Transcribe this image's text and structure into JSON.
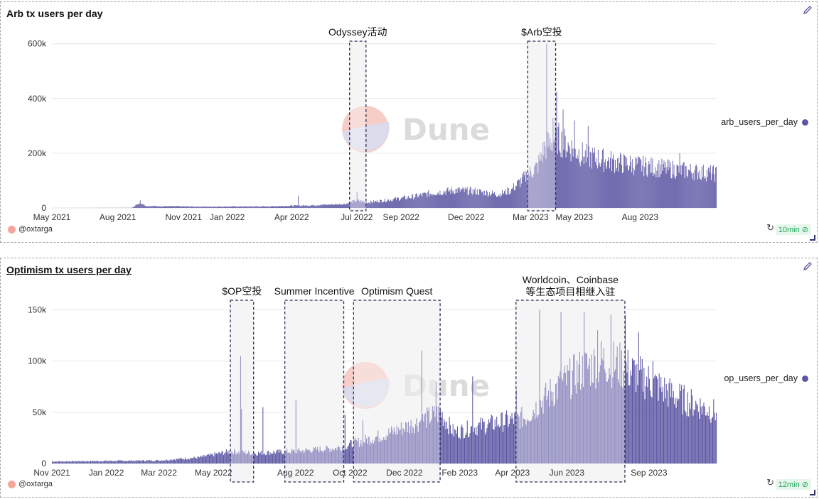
{
  "charts": [
    {
      "title": "Arb tx users per day",
      "legend": "arb_users_per_day",
      "author": "@oxtarga",
      "refresh_badge": "10min",
      "watermark": "Dune"
    },
    {
      "title": "Optimism tx users per day",
      "legend": "op_users_per_day",
      "author": "@oxtarga",
      "refresh_badge": "12min",
      "watermark": "Dune"
    }
  ],
  "colors": {
    "series": "#5b56a3",
    "grid": "#e6e6e6",
    "annotation_border": "#2b2f55",
    "highlight_bg": "#f0f0f0"
  },
  "chart_data": [
    {
      "type": "bar",
      "title": "Arb tx users per day",
      "series": [
        {
          "name": "arb_users_per_day"
        }
      ],
      "x_range": [
        "2021-05-01",
        "2023-11-15"
      ],
      "x_ticks": [
        "May 2021",
        "Aug 2021",
        "Nov 2021",
        "Jan 2022",
        "Apr 2022",
        "Jul 2022",
        "Sep 2022",
        "Dec 2022",
        "Mar 2023",
        "May 2023",
        "Aug 2023"
      ],
      "y_ticks": [
        "0",
        "200k",
        "400k",
        "600k"
      ],
      "ylim": [
        0,
        620000
      ],
      "profile": [
        [
          "2021-05-01",
          0
        ],
        [
          "2021-08-20",
          500
        ],
        [
          "2021-09-01",
          20000
        ],
        [
          "2021-09-10",
          7000
        ],
        [
          "2021-12-01",
          5000
        ],
        [
          "2022-03-01",
          6000
        ],
        [
          "2022-05-01",
          10000
        ],
        [
          "2022-06-15",
          15000
        ],
        [
          "2022-07-01",
          28000
        ],
        [
          "2022-07-15",
          20000
        ],
        [
          "2022-08-15",
          30000
        ],
        [
          "2022-09-15",
          40000
        ],
        [
          "2022-10-15",
          55000
        ],
        [
          "2022-11-15",
          65000
        ],
        [
          "2022-12-15",
          60000
        ],
        [
          "2023-01-15",
          50000
        ],
        [
          "2023-02-01",
          65000
        ],
        [
          "2023-02-20",
          110000
        ],
        [
          "2023-03-10",
          150000
        ],
        [
          "2023-03-20",
          220000
        ],
        [
          "2023-04-05",
          260000
        ],
        [
          "2023-04-20",
          230000
        ],
        [
          "2023-05-15",
          190000
        ],
        [
          "2023-07-01",
          165000
        ],
        [
          "2023-09-01",
          145000
        ],
        [
          "2023-11-15",
          125000
        ]
      ],
      "spikes": [
        [
          "2021-09-01",
          28000
        ],
        [
          "2022-04-10",
          45000
        ],
        [
          "2022-07-01",
          58000
        ],
        [
          "2023-03-23",
          600000
        ],
        [
          "2023-04-01",
          330000
        ],
        [
          "2023-04-06",
          425000
        ],
        [
          "2023-04-15",
          360000
        ],
        [
          "2023-05-01",
          320000
        ],
        [
          "2023-05-20",
          300000
        ],
        [
          "2023-09-25",
          200000
        ]
      ],
      "annotations": [
        {
          "label": "Odyssey活动",
          "start": "2022-06-21",
          "end": "2022-07-14"
        },
        {
          "label": "$Arb空投",
          "start": "2023-02-25",
          "end": "2023-04-05"
        }
      ]
    },
    {
      "type": "bar",
      "title": "Optimism tx users per day",
      "series": [
        {
          "name": "op_users_per_day"
        }
      ],
      "x_range": [
        "2021-11-01",
        "2023-11-15"
      ],
      "x_ticks": [
        "Nov 2021",
        "Jan 2022",
        "Mar 2022",
        "May 2022",
        "Aug 2022",
        "Oct 2022",
        "Dec 2022",
        "Feb 2023",
        "Apr 2023",
        "Jun 2023",
        "Sep 2023"
      ],
      "y_ticks": [
        "0",
        "50k",
        "100k",
        "150k"
      ],
      "ylim": [
        0,
        160000
      ],
      "profile": [
        [
          "2021-11-01",
          2000
        ],
        [
          "2022-01-01",
          2500
        ],
        [
          "2022-03-01",
          3000
        ],
        [
          "2022-04-15",
          6000
        ],
        [
          "2022-05-20",
          12000
        ],
        [
          "2022-06-15",
          10000
        ],
        [
          "2022-08-01",
          12000
        ],
        [
          "2022-09-15",
          15000
        ],
        [
          "2022-10-15",
          22000
        ],
        [
          "2022-11-15",
          30000
        ],
        [
          "2022-12-15",
          40000
        ],
        [
          "2023-01-10",
          50000
        ],
        [
          "2023-01-25",
          30000
        ],
        [
          "2023-02-15",
          35000
        ],
        [
          "2023-03-15",
          40000
        ],
        [
          "2023-04-15",
          45000
        ],
        [
          "2023-05-15",
          70000
        ],
        [
          "2023-06-15",
          90000
        ],
        [
          "2023-07-10",
          100000
        ],
        [
          "2023-08-01",
          95000
        ],
        [
          "2023-09-01",
          80000
        ],
        [
          "2023-10-01",
          65000
        ],
        [
          "2023-11-15",
          50000
        ]
      ],
      "spikes": [
        [
          "2022-05-31",
          105000
        ],
        [
          "2022-06-01",
          53000
        ],
        [
          "2022-06-25",
          55000
        ],
        [
          "2022-08-01",
          62000
        ],
        [
          "2022-09-25",
          48000
        ],
        [
          "2022-10-15",
          42000
        ],
        [
          "2022-12-20",
          110000
        ],
        [
          "2023-01-05",
          80000
        ],
        [
          "2023-02-15",
          85000
        ],
        [
          "2023-04-05",
          72000
        ],
        [
          "2023-05-01",
          150000
        ],
        [
          "2023-05-25",
          148000
        ],
        [
          "2023-06-20",
          148000
        ],
        [
          "2023-07-05",
          130000
        ],
        [
          "2023-07-20",
          145000
        ],
        [
          "2023-08-05",
          145000
        ],
        [
          "2023-08-20",
          128000
        ],
        [
          "2023-09-05",
          100000
        ]
      ],
      "annotations": [
        {
          "label": "$OP空投",
          "start": "2022-05-20",
          "end": "2022-06-15"
        },
        {
          "label": "Summer Incentive",
          "start": "2022-07-20",
          "end": "2022-09-24"
        },
        {
          "label": "Optimism Quest",
          "start": "2022-10-05",
          "end": "2023-01-10"
        },
        {
          "label": "Worldcoin、Coinbase",
          "label2": "等生态项目相继入驻",
          "start": "2023-04-05",
          "end": "2023-08-05"
        }
      ]
    }
  ]
}
